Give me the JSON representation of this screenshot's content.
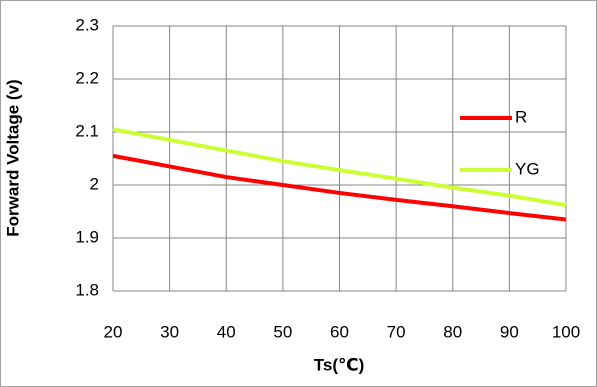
{
  "chart_data": {
    "type": "line",
    "x_label": "Ts(℃)",
    "y_label": "Forward Voltage (v)",
    "x": [
      20,
      30,
      40,
      50,
      60,
      70,
      80,
      90,
      100
    ],
    "series": [
      {
        "name": "R",
        "color": "#ff0000",
        "values": [
          2.055,
          2.035,
          2.015,
          2.0,
          1.985,
          1.972,
          1.96,
          1.947,
          1.935
        ]
      },
      {
        "name": "YG",
        "color": "#ccff33",
        "values": [
          2.105,
          2.085,
          2.065,
          2.045,
          2.028,
          2.012,
          1.995,
          1.98,
          1.962
        ]
      }
    ],
    "xlim": [
      20,
      100
    ],
    "xticks": [
      20,
      30,
      40,
      50,
      60,
      70,
      80,
      90,
      100
    ],
    "ylim": [
      1.8,
      2.3
    ],
    "yticks": [
      1.8,
      1.9,
      2,
      2.1,
      2.2,
      2.3
    ],
    "grid": true
  }
}
